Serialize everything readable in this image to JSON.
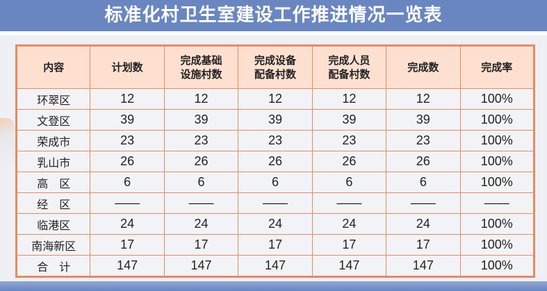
{
  "title": "标准化村卫生室建设工作推进情况一览表",
  "table": {
    "headers": [
      "内容",
      "计划数",
      "完成基础设施村数",
      "完成设备配备村数",
      "完成人员配备村数",
      "完成数",
      "完成率"
    ],
    "rows": [
      [
        "环翠区",
        "12",
        "12",
        "12",
        "12",
        "12",
        "100%"
      ],
      [
        "文登区",
        "39",
        "39",
        "39",
        "39",
        "39",
        "100%"
      ],
      [
        "荣成市",
        "23",
        "23",
        "23",
        "23",
        "23",
        "100%"
      ],
      [
        "乳山市",
        "26",
        "26",
        "26",
        "26",
        "26",
        "100%"
      ],
      [
        "高　区",
        "6",
        "6",
        "6",
        "6",
        "6",
        "100%"
      ],
      [
        "经　区",
        "——",
        "——",
        "——",
        "——",
        "——",
        "——"
      ],
      [
        "临港区",
        "24",
        "24",
        "24",
        "24",
        "24",
        "100%"
      ],
      [
        "南海新区",
        "17",
        "17",
        "17",
        "17",
        "17",
        "100%"
      ],
      [
        "合　计",
        "147",
        "147",
        "147",
        "147",
        "147",
        "100%"
      ]
    ]
  },
  "colors": {
    "title_bar": "#6a86c1",
    "border": "#e9895f",
    "header_bg": "#fde0d0",
    "cell_bg": "#f2f3f7"
  }
}
